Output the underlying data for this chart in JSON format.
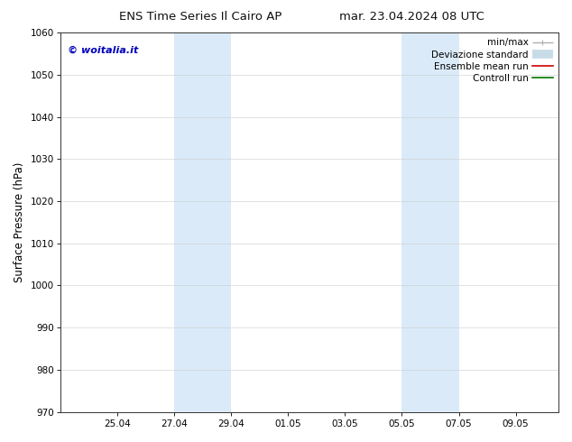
{
  "title_left": "ENS Time Series Il Cairo AP",
  "title_right": "mar. 23.04.2024 08 UTC",
  "ylabel": "Surface Pressure (hPa)",
  "ylim": [
    970,
    1060
  ],
  "yticks": [
    970,
    980,
    990,
    1000,
    1010,
    1020,
    1030,
    1040,
    1050,
    1060
  ],
  "xtick_labels": [
    "25.04",
    "27.04",
    "29.04",
    "01.05",
    "03.05",
    "05.05",
    "07.05",
    "09.05"
  ],
  "xtick_positions": [
    2,
    4,
    6,
    8,
    10,
    12,
    14,
    16
  ],
  "xlim": [
    0,
    17.5
  ],
  "shaded_regions": [
    {
      "x_start": 4,
      "x_end": 6,
      "color": "#daeaf8"
    },
    {
      "x_start": 12,
      "x_end": 14,
      "color": "#daeaf8"
    }
  ],
  "watermark_text": "© woitalia.it",
  "watermark_color": "#0000bb",
  "legend_entries": [
    {
      "label": "min/max",
      "color": "#b0b0b0",
      "lw": 1.0
    },
    {
      "label": "Deviazione standard",
      "color": "#c8dce8",
      "lw": 6
    },
    {
      "label": "Ensemble mean run",
      "color": "#cc0000",
      "lw": 1.2
    },
    {
      "label": "Controll run",
      "color": "#007700",
      "lw": 1.2
    }
  ],
  "bg_color": "#ffffff",
  "plot_bg_color": "#ffffff",
  "grid_color": "#cccccc",
  "title_fontsize": 9.5,
  "legend_fontsize": 7.5,
  "tick_fontsize": 7.5,
  "ylabel_fontsize": 8.5,
  "watermark_fontsize": 8
}
